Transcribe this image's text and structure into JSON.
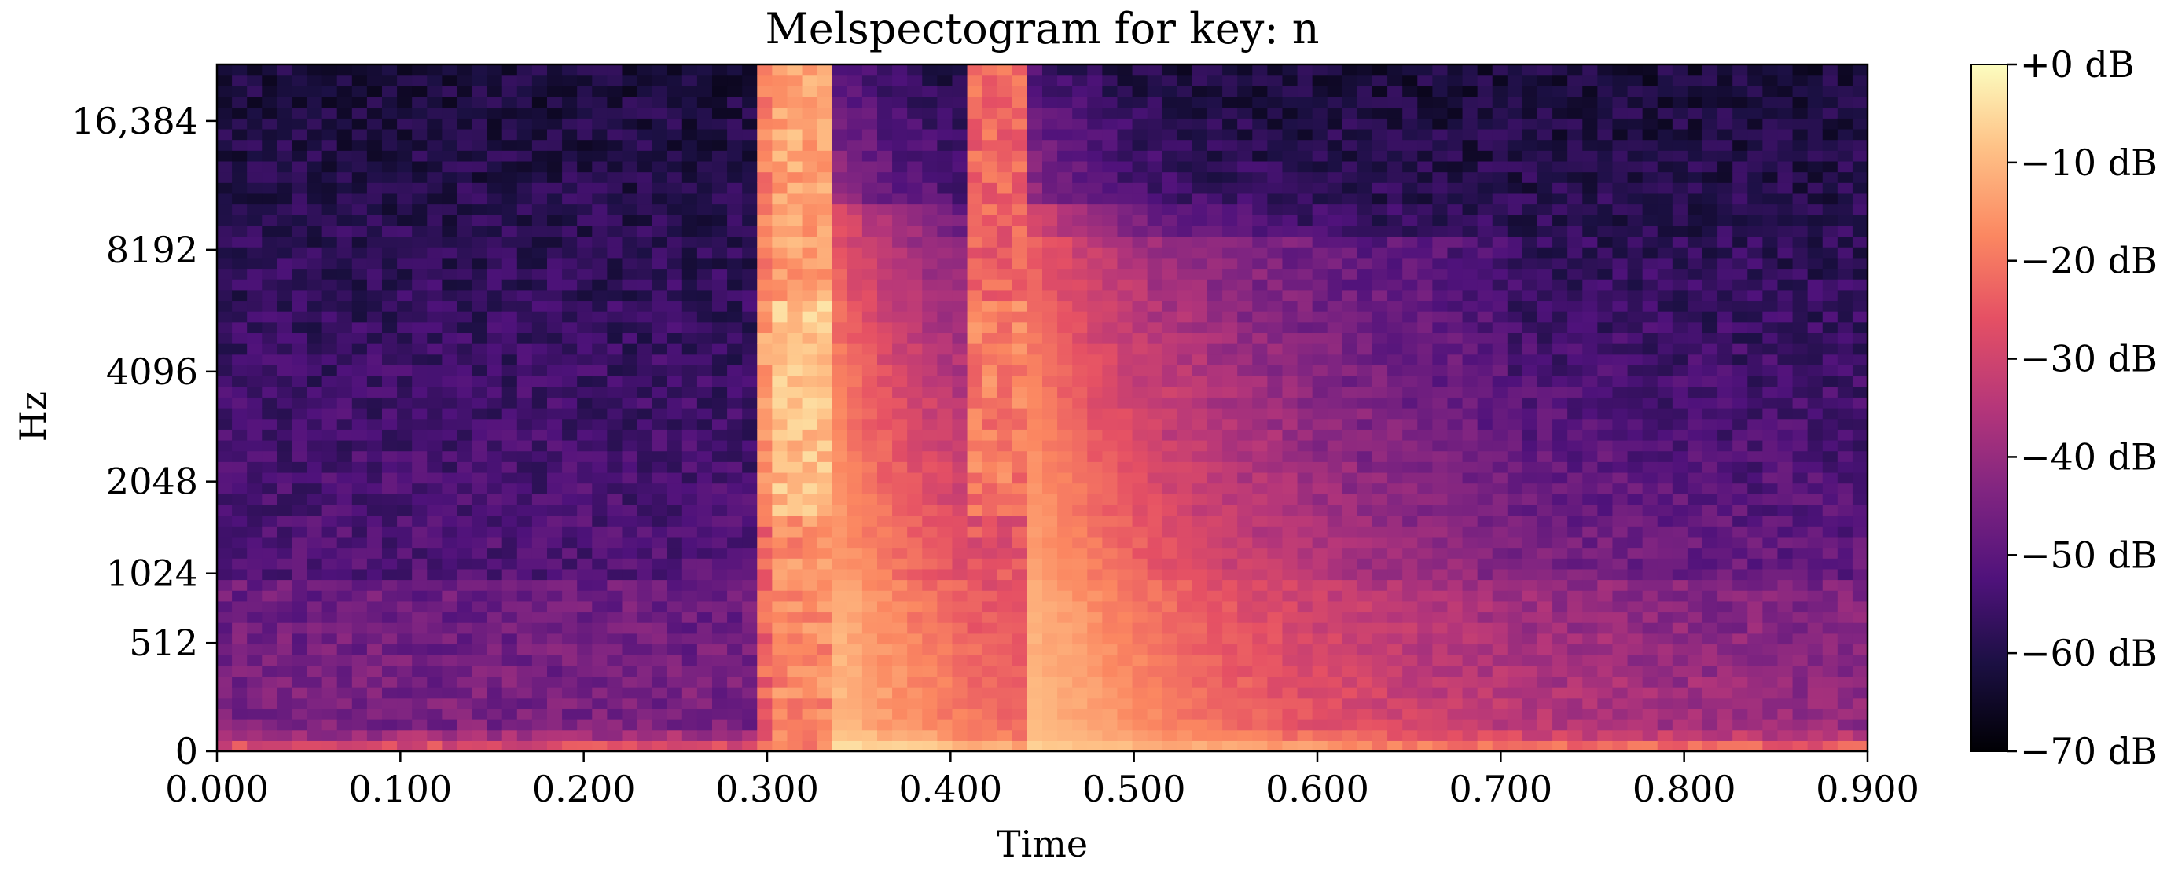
{
  "chart_data": {
    "type": "heatmap",
    "title": "Melspectogram for key: n",
    "xlabel": "Time",
    "ylabel": "Hz",
    "xlim": [
      0.0,
      0.9
    ],
    "y_scale": "mel",
    "x_ticks": [
      "0.000",
      "0.100",
      "0.200",
      "0.300",
      "0.400",
      "0.500",
      "0.600",
      "0.700",
      "0.800",
      "0.900"
    ],
    "x_tick_values": [
      0.0,
      0.1,
      0.2,
      0.3,
      0.4,
      0.5,
      0.6,
      0.7,
      0.8,
      0.9
    ],
    "y_ticks": [
      "0",
      "512",
      "1024",
      "2048",
      "4096",
      "8192",
      "16,384"
    ],
    "y_tick_values": [
      0,
      512,
      1024,
      2048,
      4096,
      8192,
      16384
    ],
    "colorbar": {
      "labels": [
        "+0 dB",
        "−10 dB",
        "−20 dB",
        "−30 dB",
        "−40 dB",
        "−50 dB",
        "−60 dB",
        "−70 dB"
      ],
      "values": [
        0,
        -10,
        -20,
        -30,
        -40,
        -50,
        -60,
        -70
      ],
      "range": [
        -70,
        0
      ],
      "colormap": "magma"
    },
    "events": [
      {
        "onset_time": 0.3,
        "decay": 0.035,
        "peak_db": 0
      },
      {
        "onset_time": 0.41,
        "decay": 0.03,
        "peak_db": -10
      }
    ],
    "grid": false
  }
}
